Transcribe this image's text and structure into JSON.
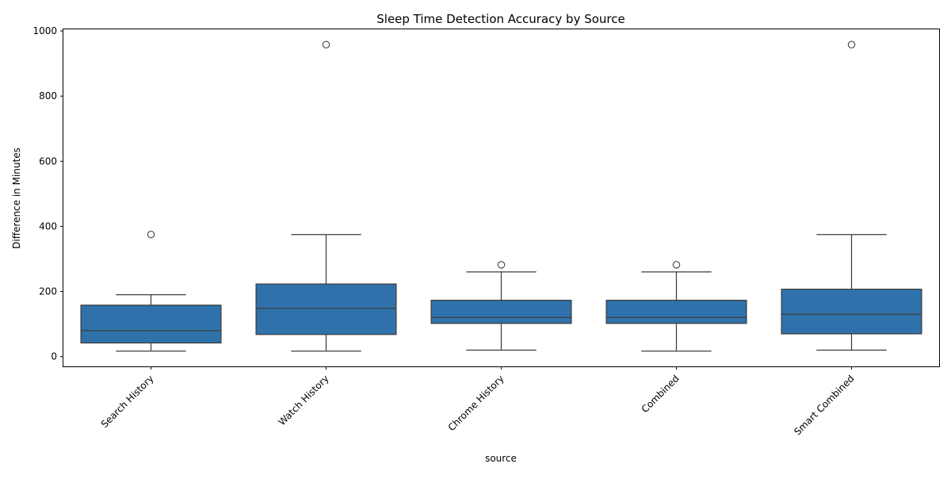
{
  "chart_data": {
    "type": "box",
    "title": "Sleep Time Detection Accuracy by Source",
    "xlabel": "source",
    "ylabel": "Difference in Minutes",
    "ylim": [
      -30,
      1005
    ],
    "yticks": [
      0,
      200,
      400,
      600,
      800,
      1000
    ],
    "grid": false,
    "legend": "none",
    "box_color": "#2f72ab",
    "line_color": "#3d3d3d",
    "categories": [
      "Search History",
      "Watch History",
      "Chrome History",
      "Combined",
      "Smart Combined"
    ],
    "boxes": [
      {
        "category": "Search History",
        "whisker_low": 17,
        "q1": 42,
        "median": 80,
        "q3": 158,
        "whisker_high": 190,
        "outliers": [
          375
        ]
      },
      {
        "category": "Watch History",
        "whisker_low": 17,
        "q1": 68,
        "median": 148,
        "q3": 223,
        "whisker_high": 375,
        "outliers": [
          958
        ]
      },
      {
        "category": "Chrome History",
        "whisker_low": 20,
        "q1": 102,
        "median": 120,
        "q3": 173,
        "whisker_high": 260,
        "outliers": [
          282
        ]
      },
      {
        "category": "Combined",
        "whisker_low": 17,
        "q1": 102,
        "median": 120,
        "q3": 173,
        "whisker_high": 260,
        "outliers": [
          282
        ]
      },
      {
        "category": "Smart Combined",
        "whisker_low": 20,
        "q1": 70,
        "median": 130,
        "q3": 207,
        "whisker_high": 375,
        "outliers": [
          958
        ]
      }
    ]
  }
}
